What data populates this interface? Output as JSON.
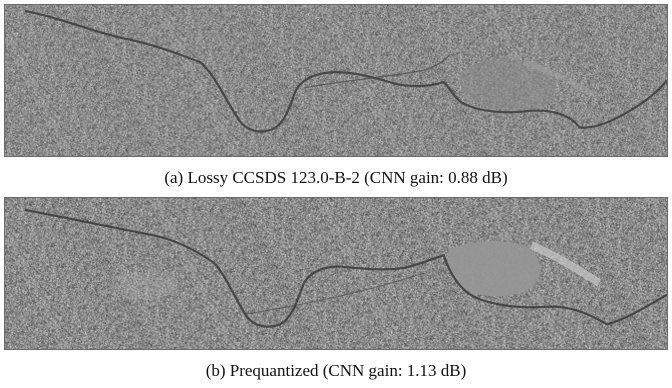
{
  "figures": [
    {
      "caption": "(a) Lossy CCSDS 123.0-B-2 (CNN gain: 0.88 dB)"
    },
    {
      "caption": "(b) Prequantized (CNN gain: 1.13 dB)"
    }
  ],
  "colors": {
    "noise_base": "#8c8c8c",
    "edge": "#3a3a3a",
    "smooth_region_a": "#8a8a8a",
    "smooth_region_b": "#969696"
  }
}
